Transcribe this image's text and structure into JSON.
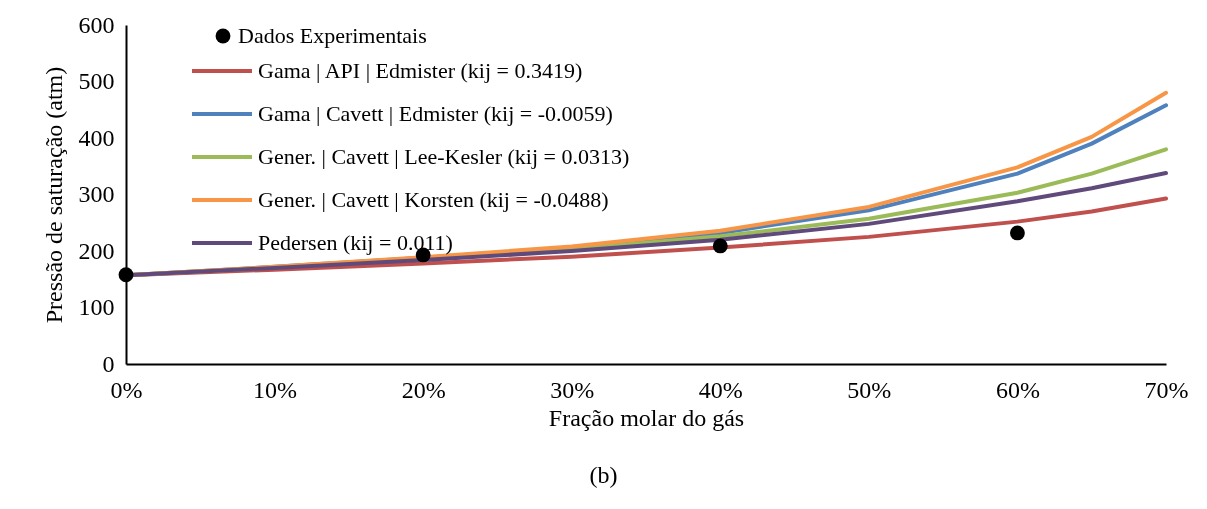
{
  "chart_data": {
    "type": "line",
    "xlabel": "Fração molar do gás",
    "ylabel": "Pressão de saturação (atm)",
    "annotations": [
      "(b)"
    ],
    "xlim": [
      0,
      0.7
    ],
    "xticks": [
      {
        "value": 0,
        "label": "0%"
      },
      {
        "value": 0.1,
        "label": "10%"
      },
      {
        "value": 0.2,
        "label": "20%"
      },
      {
        "value": 0.3,
        "label": "30%"
      },
      {
        "value": 0.4,
        "label": "40%"
      },
      {
        "value": 0.5,
        "label": "50%"
      },
      {
        "value": 0.6,
        "label": "60%"
      },
      {
        "value": 0.7,
        "label": "70%"
      }
    ],
    "ylim": [
      0,
      600
    ],
    "yticks": [
      0,
      100,
      200,
      300,
      400,
      500,
      600
    ],
    "grid": false,
    "legend": "top left",
    "x": [
      0,
      0.1,
      0.2,
      0.3,
      0.4,
      0.5,
      0.6,
      0.65,
      0.7
    ],
    "series": [
      {
        "name": "Dados Experimentais",
        "type": "scatter",
        "marker": "circle",
        "color": "#000000",
        "x": [
          0,
          0.2,
          0.4,
          0.6
        ],
        "values": [
          158,
          193,
          209,
          232
        ]
      },
      {
        "name": "Gama | API | Edmister (kij = 0.3419)",
        "color": "#c0504d",
        "values": [
          157,
          167,
          178,
          190,
          206,
          225,
          252,
          270,
          293
        ]
      },
      {
        "name": "Gama | Cavett | Edmister (kij = -0.0059)",
        "color": "#4f81bd",
        "values": [
          157,
          172,
          188,
          206,
          232,
          272,
          337,
          390,
          458
        ]
      },
      {
        "name": "Gener. | Cavett | Lee-Kesler (kij = 0.0313)",
        "color": "#9bbb59",
        "values": [
          157,
          171,
          186,
          203,
          226,
          257,
          303,
          337,
          380
        ]
      },
      {
        "name": "Gener. | Cavett | Korsten (kij = -0.0488)",
        "color": "#f79646",
        "values": [
          157,
          172,
          189,
          208,
          236,
          278,
          348,
          402,
          480
        ]
      },
      {
        "name": "Pedersen (kij = 0.011)",
        "color": "#604a7b",
        "values": [
          157,
          170,
          184,
          200,
          220,
          248,
          288,
          311,
          338
        ]
      }
    ]
  }
}
